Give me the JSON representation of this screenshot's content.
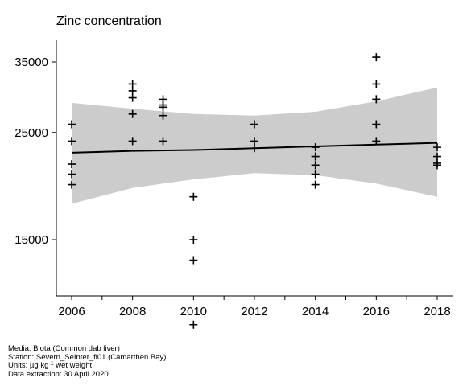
{
  "title": "Zinc concentration",
  "footer": {
    "media": "Media: Biota (Common dab liver)",
    "station": "Station: Severn_SeInter_fi01 (Camarthen Bay)",
    "units_prefix": "Units: µg kg",
    "units_sup": "-1",
    "units_suffix": " wet weight",
    "extraction": "Data extraction: 30 April 2020"
  },
  "chart_data": {
    "type": "scatter",
    "title": "Zinc concentration",
    "xlabel": "",
    "ylabel": "",
    "xlim": [
      2005.5,
      2018.5
    ],
    "ylim": [
      9500,
      36000
    ],
    "scale": "log",
    "x_ticks": [
      2006,
      2008,
      2010,
      2012,
      2014,
      2016,
      2018
    ],
    "y_ticks": [
      15000,
      25000,
      35000
    ],
    "grid": false,
    "points": [
      {
        "x": 2006,
        "y": 26000
      },
      {
        "x": 2006,
        "y": 24000
      },
      {
        "x": 2006,
        "y": 21500
      },
      {
        "x": 2006,
        "y": 20500
      },
      {
        "x": 2006,
        "y": 19500
      },
      {
        "x": 2008,
        "y": 31500
      },
      {
        "x": 2008,
        "y": 30500
      },
      {
        "x": 2008,
        "y": 29500
      },
      {
        "x": 2008,
        "y": 27300
      },
      {
        "x": 2008,
        "y": 24000
      },
      {
        "x": 2009,
        "y": 29300
      },
      {
        "x": 2009,
        "y": 28500
      },
      {
        "x": 2009,
        "y": 28200
      },
      {
        "x": 2009,
        "y": 27100
      },
      {
        "x": 2009,
        "y": 24000
      },
      {
        "x": 2010,
        "y": 18400
      },
      {
        "x": 2010,
        "y": 15000
      },
      {
        "x": 2010,
        "y": 13600
      },
      {
        "x": 2010,
        "y": 10000
      },
      {
        "x": 2012,
        "y": 26000
      },
      {
        "x": 2012,
        "y": 24000
      },
      {
        "x": 2012,
        "y": 23200
      },
      {
        "x": 2014,
        "y": 23300
      },
      {
        "x": 2014,
        "y": 22300
      },
      {
        "x": 2014,
        "y": 21400
      },
      {
        "x": 2014,
        "y": 20500
      },
      {
        "x": 2014,
        "y": 19500
      },
      {
        "x": 2016,
        "y": 35800
      },
      {
        "x": 2016,
        "y": 31500
      },
      {
        "x": 2016,
        "y": 29300
      },
      {
        "x": 2016,
        "y": 26000
      },
      {
        "x": 2016,
        "y": 24000
      },
      {
        "x": 2018,
        "y": 23300
      },
      {
        "x": 2018,
        "y": 22300
      },
      {
        "x": 2018,
        "y": 21600
      },
      {
        "x": 2018,
        "y": 21400
      }
    ],
    "trend": {
      "x": [
        2006,
        2008,
        2010,
        2012,
        2014,
        2016,
        2018
      ],
      "fit": [
        22700,
        22900,
        23000,
        23200,
        23400,
        23600,
        23800
      ],
      "lower": [
        17800,
        19200,
        20000,
        20600,
        20400,
        19600,
        18400
      ],
      "upper": [
        28800,
        28000,
        27300,
        27100,
        27600,
        29000,
        31000
      ]
    },
    "colors": {
      "band": "#cccccc",
      "points": "#000000",
      "line": "#000000"
    }
  }
}
